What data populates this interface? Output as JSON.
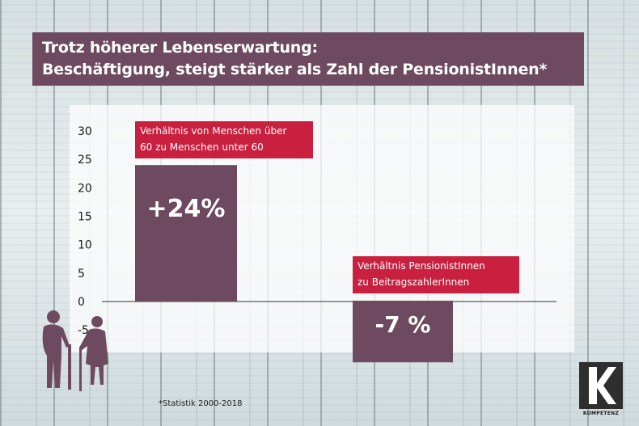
{
  "title": {
    "line1": "Trotz höherer Lebenserwartung:",
    "line2": "Beschäftigung, steigt stärker als Zahl der PensionistInnen*"
  },
  "colors": {
    "title_bg": "#6d4a5f",
    "bar": "#6d4a5f",
    "annotation_bg": "#c8203e"
  },
  "chart_data": {
    "type": "bar",
    "categories": [
      "Verhältnis von Menschen über 60 zu Menschen unter 60",
      "Verhältnis PensionistInnen zu BeitragszahlerInnen"
    ],
    "values": [
      24,
      -7
    ],
    "data_labels": [
      "+24%",
      "-7 %"
    ],
    "annotations": [
      {
        "line1": "Verhältnis von Menschen über",
        "line2": "60 zu Menschen unter 60"
      },
      {
        "line1": "Verhältnis PensionistInnen",
        "line2": "zu BeitragszahlerInnen"
      }
    ],
    "y_ticks": [
      30,
      25,
      20,
      15,
      10,
      5,
      0,
      -5
    ],
    "ylim": [
      -7,
      30
    ],
    "grid": false,
    "legend": "none"
  },
  "footnote": "*Statistik 2000-2018",
  "logo": {
    "text": "KOMPETENZ",
    "icon": "k-logo-icon"
  },
  "illustration": {
    "icon": "elderly-couple-icon"
  }
}
